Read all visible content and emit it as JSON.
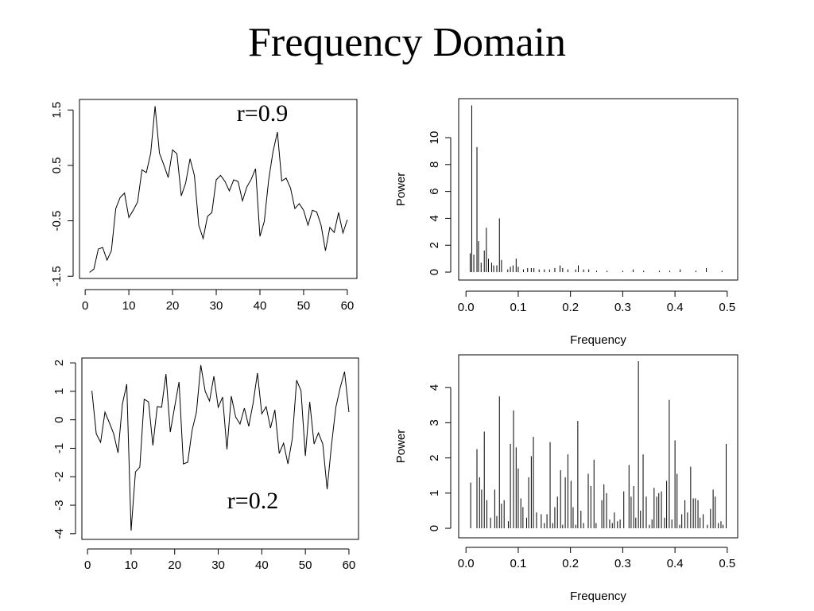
{
  "title": "Frequency Domain",
  "chart_data": [
    {
      "type": "line",
      "annotation": "r=0.9",
      "x": [
        1,
        2,
        3,
        4,
        5,
        6,
        7,
        8,
        9,
        10,
        11,
        12,
        13,
        14,
        15,
        16,
        17,
        18,
        19,
        20,
        21,
        22,
        23,
        24,
        25,
        26,
        27,
        28,
        29,
        30,
        31,
        32,
        33,
        34,
        35,
        36,
        37,
        38,
        39,
        40,
        41,
        42,
        43,
        44,
        45,
        46,
        47,
        48,
        49,
        50,
        51,
        52,
        53,
        54,
        55,
        56,
        57,
        58,
        59,
        60
      ],
      "values": [
        -1.43,
        -1.37,
        -1.01,
        -0.98,
        -1.21,
        -1.04,
        -0.28,
        -0.08,
        0.0,
        -0.44,
        -0.31,
        -0.16,
        0.42,
        0.37,
        0.72,
        1.57,
        0.72,
        0.51,
        0.28,
        0.78,
        0.71,
        -0.05,
        0.18,
        0.62,
        0.32,
        -0.58,
        -0.82,
        -0.42,
        -0.35,
        0.24,
        0.32,
        0.21,
        0.04,
        0.24,
        0.21,
        -0.14,
        0.11,
        0.25,
        0.44,
        -0.78,
        -0.51,
        0.24,
        0.75,
        1.1,
        0.22,
        0.27,
        0.09,
        -0.28,
        -0.19,
        -0.31,
        -0.58,
        -0.31,
        -0.34,
        -0.58,
        -1.04,
        -0.62,
        -0.71,
        -0.35,
        -0.72,
        -0.48
      ],
      "color": "#000000",
      "xlim": [
        -1.3,
        62.2
      ],
      "xticks": [
        0,
        10,
        20,
        30,
        40,
        50,
        60
      ],
      "ylim": [
        -1.54,
        1.69
      ],
      "yticks": [
        1.5,
        0.5,
        -0.5,
        -1.5
      ]
    },
    {
      "type": "bar",
      "xlabel": "Frequency",
      "ylabel": "Power",
      "color": "#000000",
      "x": [
        0.008,
        0.011,
        0.015,
        0.021,
        0.024,
        0.029,
        0.035,
        0.039,
        0.043,
        0.049,
        0.053,
        0.059,
        0.064,
        0.068,
        0.08,
        0.085,
        0.09,
        0.096,
        0.1,
        0.11,
        0.118,
        0.125,
        0.13,
        0.14,
        0.15,
        0.16,
        0.17,
        0.18,
        0.185,
        0.195,
        0.21,
        0.215,
        0.225,
        0.235,
        0.25,
        0.27,
        0.3,
        0.32,
        0.34,
        0.37,
        0.39,
        0.41,
        0.44,
        0.46,
        0.49
      ],
      "values": [
        1.4,
        12.4,
        1.3,
        9.3,
        2.3,
        0.7,
        1.6,
        3.3,
        1.0,
        0.7,
        0.5,
        0.5,
        4.0,
        0.9,
        0.2,
        0.4,
        0.5,
        1.0,
        0.4,
        0.2,
        0.3,
        0.3,
        0.3,
        0.2,
        0.2,
        0.2,
        0.3,
        0.5,
        0.3,
        0.2,
        0.2,
        0.5,
        0.2,
        0.2,
        0.1,
        0.1,
        0.1,
        0.2,
        0.1,
        0.1,
        0.1,
        0.2,
        0.1,
        0.3,
        0.1
      ],
      "xlim": [
        -0.014,
        0.52
      ],
      "xticks": [
        {
          "value": 0,
          "label": "0.0"
        },
        0.1,
        0.2,
        0.3,
        0.4,
        0.5
      ],
      "ylim": [
        -0.59,
        12.9
      ],
      "yticks": [
        0,
        2,
        4,
        6,
        8,
        10
      ]
    },
    {
      "type": "line",
      "annotation": "r=0.2",
      "color": "#000000",
      "x": [
        1,
        2,
        3,
        4,
        5,
        6,
        7,
        8,
        9,
        10,
        11,
        12,
        13,
        14,
        15,
        16,
        17,
        18,
        19,
        20,
        21,
        22,
        23,
        24,
        25,
        26,
        27,
        28,
        29,
        30,
        31,
        32,
        33,
        34,
        35,
        36,
        37,
        38,
        39,
        40,
        41,
        42,
        43,
        44,
        45,
        46,
        47,
        48,
        49,
        50,
        51,
        52,
        53,
        54,
        55,
        56,
        57,
        58,
        59,
        60
      ],
      "values": [
        1.02,
        -0.49,
        -0.79,
        0.27,
        -0.1,
        -0.49,
        -1.16,
        0.55,
        1.25,
        -3.89,
        -1.83,
        -1.66,
        0.72,
        0.63,
        -0.9,
        0.46,
        0.44,
        1.61,
        -0.43,
        0.46,
        1.33,
        -1.55,
        -1.49,
        -0.37,
        0.27,
        1.92,
        1.0,
        0.66,
        1.53,
        0.44,
        0.8,
        -1.04,
        0.83,
        0.1,
        -0.15,
        0.41,
        -0.23,
        0.58,
        1.64,
        0.21,
        0.46,
        -0.29,
        0.35,
        -1.18,
        -0.82,
        -1.55,
        -0.66,
        1.39,
        1.02,
        -1.27,
        0.63,
        -0.85,
        -0.46,
        -0.85,
        -2.44,
        -0.88,
        0.44,
        1.13,
        1.69,
        0.27
      ],
      "xlim": [
        -1.3,
        62.2
      ],
      "xticks": [
        0,
        10,
        20,
        30,
        40,
        50,
        60
      ],
      "ylim": [
        -4.2,
        2.17
      ],
      "yticks": [
        2,
        1,
        0,
        -1,
        -2,
        -3,
        -4
      ]
    },
    {
      "type": "bar",
      "xlabel": "Frequency",
      "ylabel": "Power",
      "color": "#000000",
      "x": [
        0.009,
        0.021,
        0.026,
        0.03,
        0.035,
        0.04,
        0.047,
        0.055,
        0.059,
        0.064,
        0.068,
        0.073,
        0.081,
        0.085,
        0.091,
        0.096,
        0.1,
        0.105,
        0.109,
        0.116,
        0.12,
        0.125,
        0.129,
        0.135,
        0.144,
        0.15,
        0.155,
        0.161,
        0.166,
        0.17,
        0.175,
        0.181,
        0.185,
        0.19,
        0.195,
        0.201,
        0.205,
        0.21,
        0.214,
        0.22,
        0.225,
        0.234,
        0.239,
        0.245,
        0.249,
        0.26,
        0.264,
        0.269,
        0.275,
        0.28,
        0.284,
        0.29,
        0.295,
        0.302,
        0.312,
        0.316,
        0.321,
        0.325,
        0.33,
        0.334,
        0.339,
        0.345,
        0.351,
        0.356,
        0.36,
        0.365,
        0.369,
        0.374,
        0.38,
        0.384,
        0.389,
        0.394,
        0.4,
        0.404,
        0.409,
        0.413,
        0.419,
        0.424,
        0.43,
        0.435,
        0.439,
        0.444,
        0.448,
        0.454,
        0.462,
        0.468,
        0.473,
        0.477,
        0.483,
        0.488,
        0.492,
        0.498
      ],
      "values": [
        1.3,
        2.25,
        1.45,
        1.1,
        2.75,
        0.8,
        0.3,
        1.1,
        0.35,
        3.75,
        0.7,
        0.8,
        0.2,
        2.4,
        3.35,
        2.3,
        1.7,
        0.85,
        0.6,
        0.3,
        1.45,
        2.05,
        2.6,
        0.45,
        0.4,
        0.15,
        0.4,
        2.45,
        0.15,
        0.6,
        0.9,
        1.65,
        0.1,
        1.45,
        2.1,
        1.35,
        0.6,
        0.1,
        3.05,
        0.5,
        0.15,
        1.55,
        1.2,
        1.95,
        0.15,
        0.8,
        1.25,
        1.0,
        0.25,
        0.15,
        0.45,
        0.2,
        0.25,
        1.05,
        1.8,
        0.9,
        1.2,
        0.3,
        4.75,
        0.5,
        2.1,
        0.9,
        0.1,
        0.25,
        1.15,
        0.9,
        1.0,
        1.05,
        0.3,
        1.35,
        3.65,
        0.25,
        2.5,
        1.55,
        0.1,
        0.4,
        0.8,
        0.45,
        1.75,
        0.85,
        0.85,
        0.8,
        0.3,
        0.4,
        0.1,
        0.55,
        1.1,
        0.9,
        0.15,
        0.2,
        0.1,
        2.4
      ],
      "xlim": [
        -0.014,
        0.52
      ],
      "xticks": [
        {
          "value": 0,
          "label": "0.0"
        },
        0.1,
        0.2,
        0.3,
        0.4,
        0.5
      ],
      "ylim": [
        -0.27,
        4.93
      ],
      "yticks": [
        0,
        1,
        2,
        3,
        4
      ]
    }
  ]
}
